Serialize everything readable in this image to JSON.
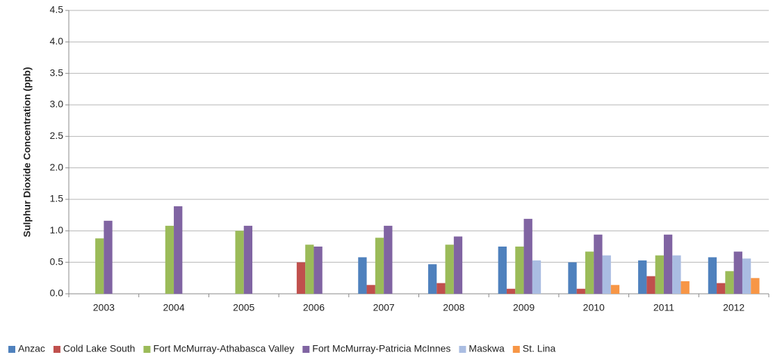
{
  "chart_data": {
    "type": "bar",
    "y_label": "Sulphur Dioxide Concentration (ppb)",
    "categories": [
      "2003",
      "2004",
      "2005",
      "2006",
      "2007",
      "2008",
      "2009",
      "2010",
      "2011",
      "2012"
    ],
    "series": [
      {
        "name": "Anzac",
        "color": "#4f81bd",
        "values": [
          null,
          null,
          null,
          null,
          0.58,
          0.47,
          0.75,
          0.5,
          0.53,
          0.58
        ]
      },
      {
        "name": "Cold Lake South",
        "color": "#c0504d",
        "values": [
          null,
          null,
          null,
          0.5,
          0.14,
          0.17,
          0.08,
          0.08,
          0.28,
          0.17
        ]
      },
      {
        "name": "Fort McMurray-Athabasca Valley",
        "color": "#9bbb59",
        "values": [
          0.88,
          1.08,
          1.0,
          0.78,
          0.89,
          0.78,
          0.75,
          0.67,
          0.61,
          0.36
        ]
      },
      {
        "name": "Fort McMurray-Patricia McInnes",
        "color": "#8064a2",
        "values": [
          1.16,
          1.39,
          1.08,
          0.75,
          1.08,
          0.91,
          1.19,
          0.94,
          0.94,
          0.67
        ]
      },
      {
        "name": "Maskwa",
        "color": "#aabde2",
        "values": [
          null,
          null,
          null,
          null,
          null,
          null,
          0.53,
          0.61,
          0.61,
          0.56
        ]
      },
      {
        "name": "St. Lina",
        "color": "#f79646",
        "values": [
          null,
          null,
          null,
          null,
          null,
          null,
          null,
          0.14,
          0.2,
          0.25
        ]
      }
    ],
    "ylim": [
      0,
      4.5
    ],
    "yticks": [
      {
        "value": 0,
        "label": "0.0"
      },
      {
        "value": 0.5,
        "label": "0.5"
      },
      {
        "value": 1,
        "label": "1.0"
      },
      {
        "value": 1.5,
        "label": "1.5"
      },
      {
        "value": 2,
        "label": "2.0"
      },
      {
        "value": 2.5,
        "label": "2.5"
      },
      {
        "value": 3,
        "label": "3.0"
      },
      {
        "value": 3.5,
        "label": "3.5"
      },
      {
        "value": 4,
        "label": "4.0"
      },
      {
        "value": 4.5,
        "label": "4.5"
      }
    ],
    "grid": true
  }
}
